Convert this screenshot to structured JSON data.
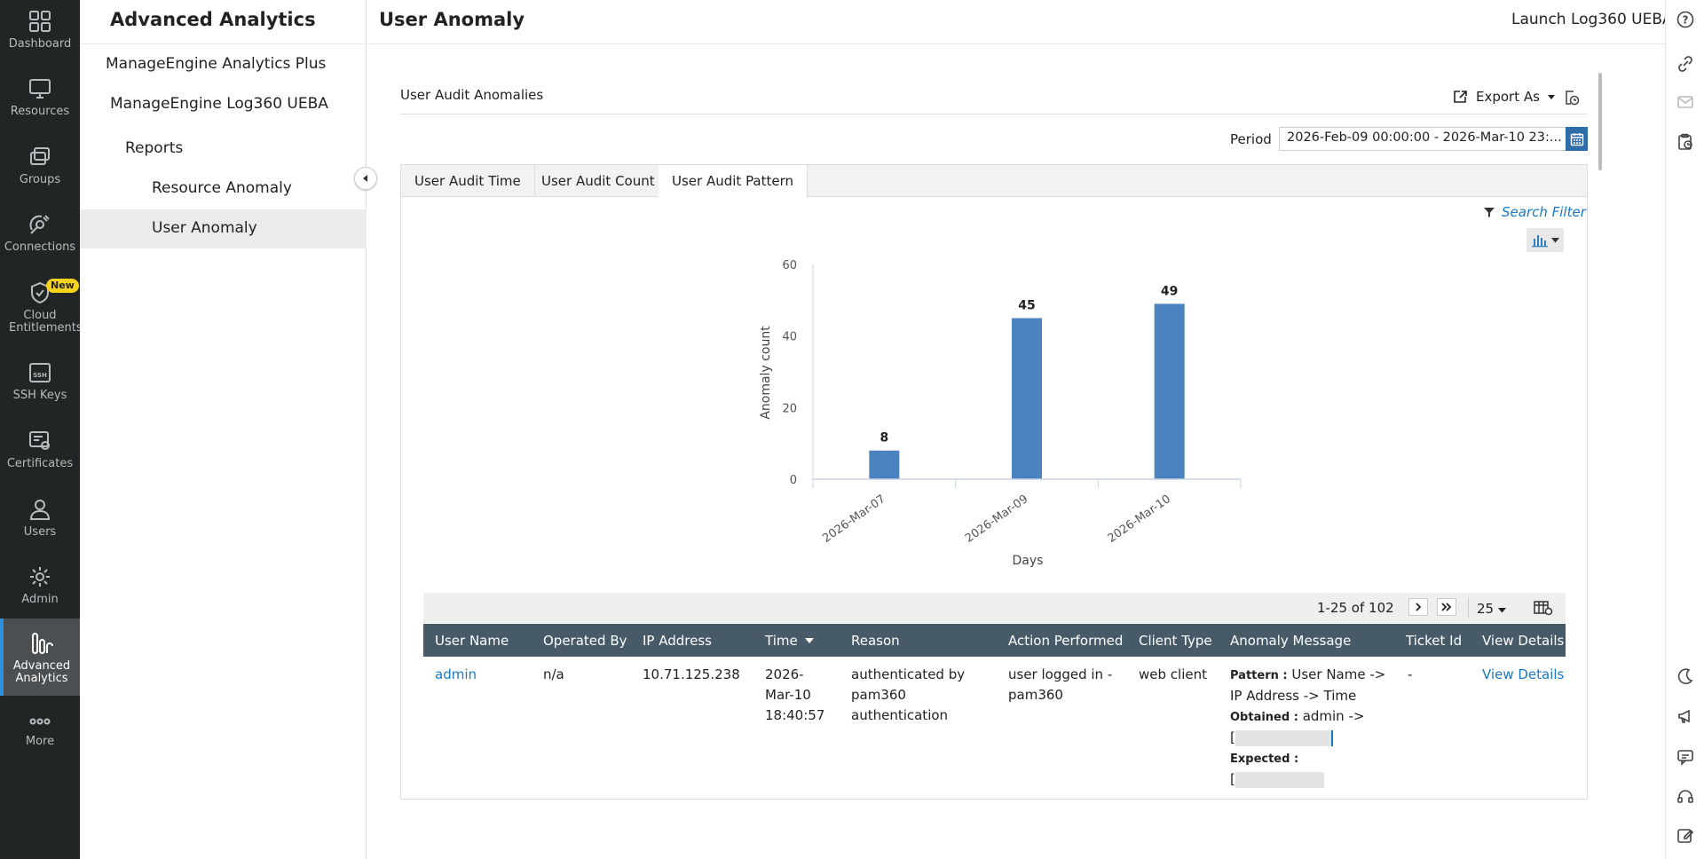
{
  "left_rail": {
    "items": [
      {
        "label": "Dashboard",
        "icon": "grid-icon"
      },
      {
        "label": "Resources",
        "icon": "monitor-icon"
      },
      {
        "label": "Groups",
        "icon": "groups-icon"
      },
      {
        "label": "Connections",
        "icon": "satellite-icon"
      },
      {
        "label": "Cloud Entitlements",
        "icon": "cloud-shield-icon",
        "badge": "New"
      },
      {
        "label": "SSH Keys",
        "icon": "ssh-key-icon"
      },
      {
        "label": "Certificates",
        "icon": "certificate-icon"
      },
      {
        "label": "Users",
        "icon": "user-icon"
      },
      {
        "label": "Admin",
        "icon": "gear-icon"
      },
      {
        "label": "Advanced Analytics",
        "icon": "analytics-icon",
        "active": true
      },
      {
        "label": "More",
        "icon": "more-dots-icon"
      }
    ]
  },
  "subnav": {
    "title": "Advanced Analytics",
    "items": [
      {
        "label": "ManageEngine Analytics Plus"
      },
      {
        "label": "ManageEngine Log360 UEBA"
      },
      {
        "label": "Reports"
      },
      {
        "label": "Resource Anomaly"
      },
      {
        "label": "User Anomaly",
        "active": true
      }
    ]
  },
  "header": {
    "title": "User Anomaly",
    "launch_link": "Launch Log360 UEBA"
  },
  "card": {
    "title": "User Audit Anomalies",
    "export_label": "Export As",
    "period_label": "Period",
    "period_value": "2026-Feb-09 00:00:00 - 2026-Mar-10 23:..."
  },
  "tabs": [
    {
      "label": "User Audit Time"
    },
    {
      "label": "User Audit Count"
    },
    {
      "label": "User Audit Pattern",
      "active": true
    }
  ],
  "search_filter_label": "Search Filter",
  "chart_data": {
    "type": "bar",
    "categories": [
      "2026-Mar-07",
      "2026-Mar-09",
      "2026-Mar-10"
    ],
    "values": [
      8,
      45,
      49
    ],
    "data_labels": [
      "8",
      "45",
      "49"
    ],
    "xlabel": "Days",
    "ylabel": "Anomaly count",
    "ylim": [
      0,
      60
    ],
    "yticks": [
      "0",
      "20",
      "40",
      "60"
    ],
    "bar_color": "#4a83bf",
    "grid": false
  },
  "pager": {
    "range": "1-25 of 102",
    "page_size": "25"
  },
  "table": {
    "columns": [
      "User Name",
      "Operated By",
      "IP Address",
      "Time",
      "Reason",
      "Action Performed",
      "Client Type",
      "Anomaly Message",
      "Ticket Id",
      "View Details"
    ],
    "row": {
      "user_name": "admin",
      "operated_by": "n/a",
      "ip_address": "10.71.125.238",
      "time_1": "2026-",
      "time_2": "Mar-10",
      "time_3": "18:40:57",
      "reason_1": "authenticated by",
      "reason_2": "pam360",
      "reason_3": "authentication",
      "action_1": "user logged in -",
      "action_2": "pam360",
      "client_type": "web client",
      "pattern_key": "Pattern :",
      "pattern_1": "User Name ->",
      "pattern_2": "IP Address -> Time",
      "obtained_key": "Obtained :",
      "obtained_val": "admin ->",
      "obtained_bracket": "[",
      "expected_key": "Expected :",
      "expected_bracket": "[",
      "ticket_id": "-",
      "view_details": "View Details"
    }
  }
}
